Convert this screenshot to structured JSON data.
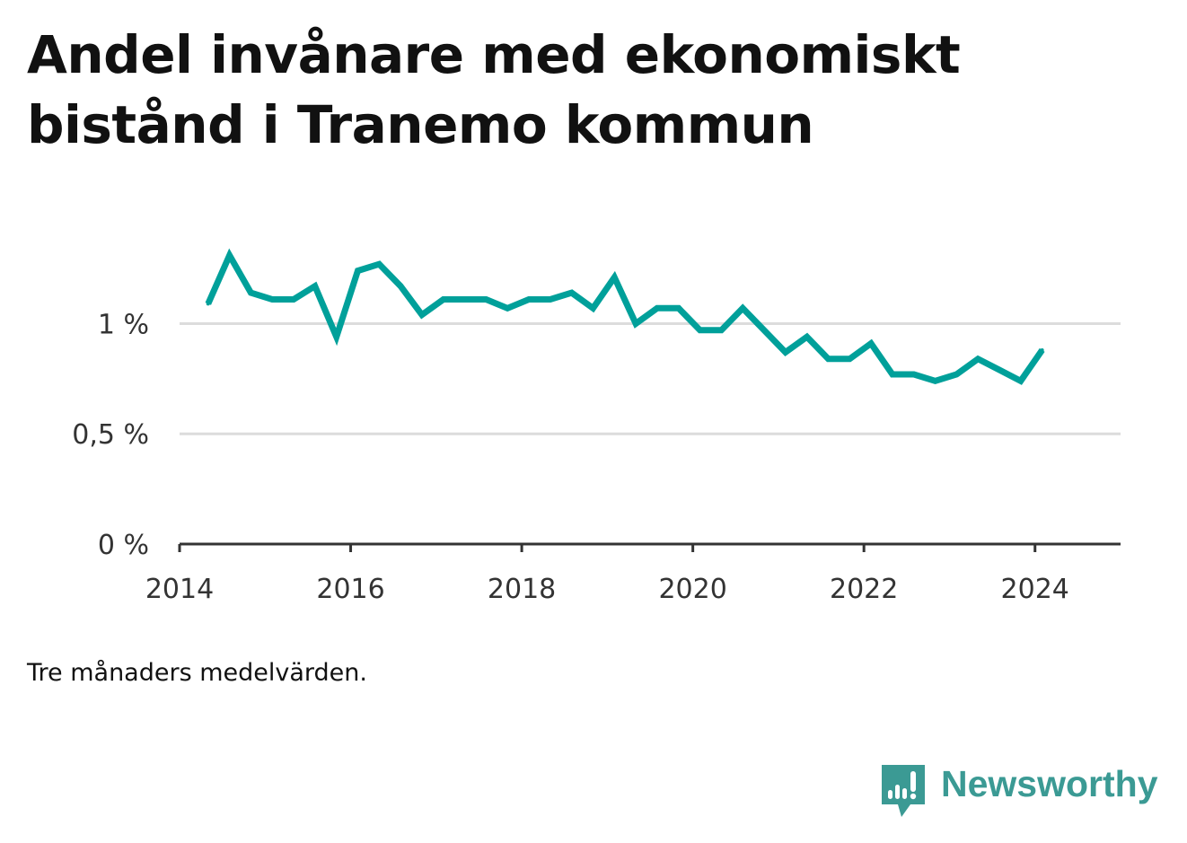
{
  "title": "Andel invånare med ekonomiskt bistånd i Tranemo kommun",
  "note": "Tre månaders medelvärden.",
  "brand": {
    "name": "Newsworthy",
    "icon": "newsworthy-chart-bubble-icon",
    "color": "#3b9a94"
  },
  "chart_data": {
    "type": "line",
    "title": "Andel invånare med ekonomiskt bistånd i Tranemo kommun",
    "xlabel": "",
    "ylabel": "",
    "x_ticks": [
      "2014",
      "2016",
      "2018",
      "2020",
      "2022",
      "2024"
    ],
    "y_ticks": [
      {
        "value": 0,
        "label": "0 %"
      },
      {
        "value": 0.5,
        "label": "0,5 %"
      },
      {
        "value": 1,
        "label": "1 %"
      }
    ],
    "xlim": [
      "2014-01",
      "2025-01"
    ],
    "ylim": [
      0,
      1.45
    ],
    "grid": "horizontal",
    "line_color": "#00a09a",
    "series": [
      {
        "x": [
          "2014-05",
          "2014-08",
          "2014-11",
          "2015-02",
          "2015-05",
          "2015-08",
          "2015-11",
          "2016-02",
          "2016-05",
          "2016-08",
          "2016-11",
          "2017-02",
          "2017-05",
          "2017-08",
          "2017-11",
          "2018-02",
          "2018-05",
          "2018-08",
          "2018-11",
          "2019-02",
          "2019-05",
          "2019-08",
          "2019-11",
          "2020-02",
          "2020-05",
          "2020-08",
          "2020-11",
          "2021-02",
          "2021-05",
          "2021-08",
          "2021-11",
          "2022-02",
          "2022-05",
          "2022-08",
          "2022-11",
          "2023-02",
          "2023-05",
          "2023-08",
          "2023-11",
          "2024-02"
        ],
        "values": [
          1.09,
          1.31,
          1.14,
          1.11,
          1.11,
          1.17,
          0.94,
          1.24,
          1.27,
          1.17,
          1.04,
          1.11,
          1.11,
          1.11,
          1.07,
          1.11,
          1.11,
          1.14,
          1.07,
          1.21,
          1.0,
          1.07,
          1.07,
          0.97,
          0.97,
          1.07,
          0.97,
          0.87,
          0.94,
          0.84,
          0.84,
          0.91,
          0.77,
          0.77,
          0.74,
          0.77,
          0.84,
          0.79,
          0.74,
          0.88
        ]
      }
    ]
  }
}
